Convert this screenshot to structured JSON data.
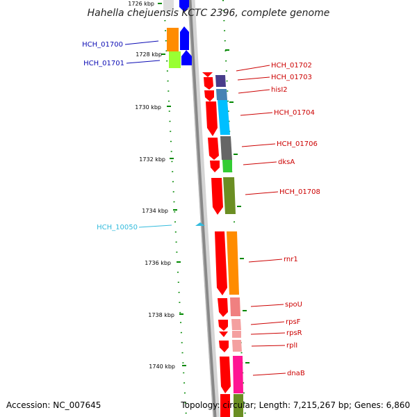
{
  "title": "Hahella chejuensis KCTC 2396, complete genome",
  "footer": {
    "accession": "Accession: NC_007645",
    "summary": "Topology: circular; Length: 7,215,267 bp; Genes: 6,860"
  },
  "ticks": [
    {
      "label": "1726 kbp"
    },
    {
      "label": "1728 kbp"
    },
    {
      "label": "1730 kbp"
    },
    {
      "label": "1732 kbp"
    },
    {
      "label": "1734 kbp"
    },
    {
      "label": "1736 kbp"
    },
    {
      "label": "1738 kbp"
    },
    {
      "label": "1740 kbp"
    }
  ],
  "colors": {
    "outer_strand_label": "#0a0ab4",
    "inner_strand_label": "#cc0000",
    "ncrna_label": "#33bbdd",
    "scale_tick": "#008800",
    "backbone": "#888888",
    "cds_red": "#ff0000"
  },
  "genes": {
    "outer": [
      {
        "label": "HCH_01700"
      },
      {
        "label": "HCH_01701"
      }
    ],
    "ncrna": [
      {
        "label": "HCH_10050"
      }
    ],
    "inner": [
      {
        "label": "HCH_01702"
      },
      {
        "label": "HCH_01703"
      },
      {
        "label": "hisI2"
      },
      {
        "label": "HCH_01704"
      },
      {
        "label": "HCH_01706"
      },
      {
        "label": "dksA"
      },
      {
        "label": "HCH_01708"
      },
      {
        "label": "rnr1"
      },
      {
        "label": "spoU"
      },
      {
        "label": "rpsF"
      },
      {
        "label": "rpsR"
      },
      {
        "label": "rplI"
      },
      {
        "label": "dnaB"
      }
    ]
  }
}
